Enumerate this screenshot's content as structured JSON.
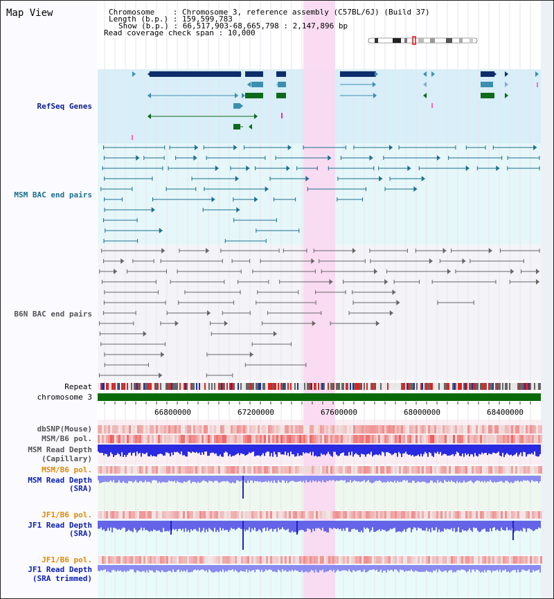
{
  "header": {
    "title": "Map View",
    "chromosome_label": "Chromosome",
    "chromosome_value": "Chromosome 3, reference assembly (C57BL/6J) (Build 37)",
    "length_label": "Length (b.p.)",
    "length_value": "159,599,783",
    "show_label": "Show (b.p.)",
    "show_value": "66,517,903-68,665,798 : 2,147,896 bp",
    "coverage_label": "Read coverage check span",
    "coverage_value": "10,000"
  },
  "tracks": {
    "refseq": "RefSeq Genes",
    "msm_bac": "MSM BAC end pairs",
    "b6n_bac": "B6N BAC end pairs",
    "repeat": "Repeat",
    "chromosome": "chromosome 3",
    "dbsnp": "dbSNP(Mouse)",
    "msm_b6_pol_1": "MSM/B6 pol.",
    "msm_depth_cap_1": "MSM Read Depth",
    "msm_depth_cap_2": "(Capillary)",
    "msm_b6_pol_2": "MSM/B6 pol.",
    "msm_depth_sra_1": "MSM Read Depth",
    "msm_depth_sra_2": "(SRA)",
    "jf1_b6_pol_1": "JF1/B6 pol.",
    "jf1_depth_sra_1": "JF1 Read Depth",
    "jf1_depth_sra_2": "(SRA)",
    "jf1_b6_pol_2": "JF1/B6 pol.",
    "jf1_depth_trim_1": "JF1 Read Depth",
    "jf1_depth_trim_2": "(SRA trimmed)"
  },
  "axis": {
    "ticks": [
      "66800000",
      "67200000",
      "67600000",
      "68000000",
      "68400000"
    ]
  },
  "colors": {
    "refseq_label": "#0a1f8f",
    "msm_label": "#1a6e8e",
    "orange_label": "#e08a00",
    "blue_label": "#0a1fb0",
    "gene_navy": "#0d2d6b",
    "gene_teal": "#3b8fb0",
    "gene_green": "#0e6a1a",
    "highlight": "#f9d8f1"
  }
}
